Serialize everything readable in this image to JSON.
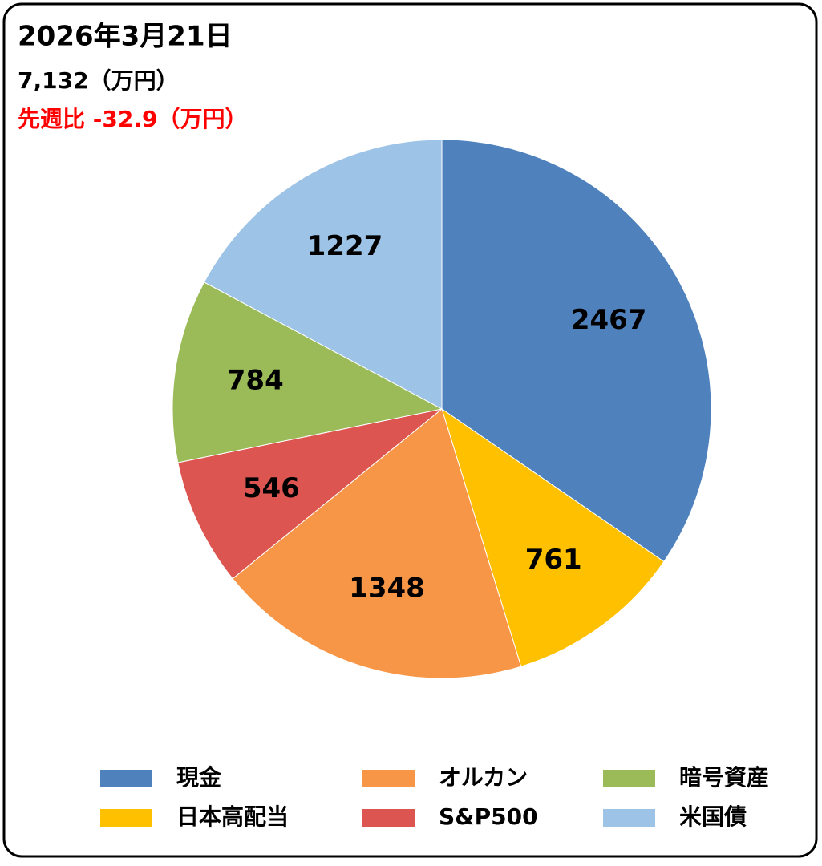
{
  "chart_data": {
    "type": "pie",
    "title": "2026年3月21日",
    "subtitle": "7,132（万円）",
    "annotation": "先週比 -32.9（万円）",
    "categories": [
      "現金",
      "日本高配当",
      "オルカン",
      "S&P500",
      "暗号資産",
      "米国債"
    ],
    "values": [
      2467,
      761,
      1348,
      546,
      784,
      1227
    ],
    "colors": [
      "#4f81bd",
      "#ffc000",
      "#f79646",
      "#dd5550",
      "#9bbb59",
      "#9dc3e6"
    ]
  }
}
